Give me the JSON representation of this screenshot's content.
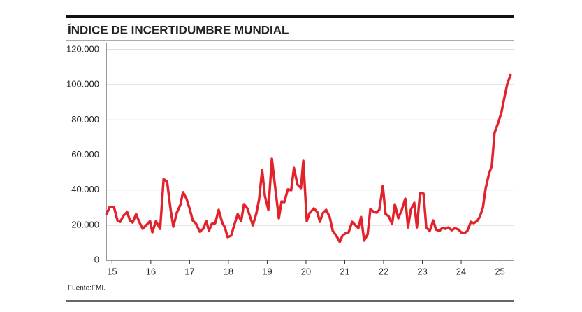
{
  "chart_data": {
    "type": "line",
    "title": "ÍNDICE DE INCERTIDUMBRE MUNDIAL",
    "source": "Fuente:FMI.",
    "x": [
      14.85,
      14.94,
      15.05,
      15.14,
      15.21,
      15.3,
      15.39,
      15.46,
      15.53,
      15.62,
      15.7,
      15.79,
      15.88,
      15.98,
      16.04,
      16.13,
      16.24,
      16.33,
      16.42,
      16.51,
      16.58,
      16.67,
      16.76,
      16.83,
      16.92,
      17.01,
      17.08,
      17.17,
      17.26,
      17.35,
      17.43,
      17.5,
      17.57,
      17.66,
      17.75,
      17.84,
      17.91,
      17.98,
      18.07,
      18.16,
      18.24,
      18.33,
      18.4,
      18.49,
      18.56,
      18.63,
      18.72,
      18.79,
      18.87,
      18.94,
      19.03,
      19.12,
      19.21,
      19.3,
      19.37,
      19.44,
      19.53,
      19.62,
      19.69,
      19.78,
      19.87,
      19.93,
      20.02,
      20.09,
      20.2,
      20.29,
      20.36,
      20.43,
      20.52,
      20.61,
      20.69,
      20.78,
      20.87,
      20.94,
      21.03,
      21.1,
      21.19,
      21.26,
      21.35,
      21.42,
      21.5,
      21.59,
      21.66,
      21.75,
      21.82,
      21.89,
      21.98,
      22.05,
      22.13,
      22.22,
      22.29,
      22.38,
      22.47,
      22.56,
      22.63,
      22.7,
      22.79,
      22.86,
      22.94,
      23.03,
      23.1,
      23.19,
      23.28,
      23.35,
      23.44,
      23.51,
      23.6,
      23.67,
      23.76,
      23.84,
      23.93,
      24.0,
      24.09,
      24.16,
      24.25,
      24.32,
      24.41,
      24.48,
      24.56,
      24.63,
      24.72,
      24.79,
      24.86,
      24.95,
      25.04,
      25.12,
      25.19,
      25.28
    ],
    "series": [
      {
        "color": "#e3232c",
        "values": [
          25900,
          30300,
          30300,
          22700,
          21900,
          25500,
          27500,
          22700,
          21500,
          26300,
          21900,
          17900,
          19900,
          22300,
          15900,
          22300,
          17900,
          46200,
          44700,
          28700,
          19100,
          27100,
          31500,
          38700,
          35100,
          28700,
          22700,
          20700,
          16300,
          17900,
          22300,
          16700,
          20700,
          21100,
          28700,
          21500,
          18700,
          13200,
          14000,
          20700,
          26300,
          22300,
          31900,
          29500,
          24700,
          19900,
          26700,
          34700,
          51400,
          36700,
          28700,
          57800,
          40700,
          23900,
          33500,
          33100,
          40300,
          39900,
          52600,
          43100,
          41100,
          56600,
          22300,
          26700,
          29500,
          27500,
          21900,
          26700,
          28700,
          24700,
          16700,
          14000,
          10400,
          14000,
          15500,
          15900,
          21900,
          20300,
          18300,
          24700,
          11200,
          14800,
          29100,
          27500,
          27100,
          28700,
          42300,
          26300,
          25100,
          20700,
          31900,
          23900,
          28700,
          35100,
          18700,
          28700,
          32700,
          18700,
          38300,
          37900,
          18700,
          16700,
          22700,
          17500,
          16700,
          18300,
          17900,
          18700,
          17100,
          18300,
          17500,
          15900,
          15500,
          16700,
          21900,
          21100,
          22300,
          24700,
          29900,
          40700,
          49400,
          53800,
          72600,
          78100,
          84500,
          93300,
          100500,
          106000
        ]
      }
    ],
    "xlim": [
      14.85,
      25.35
    ],
    "xticks": [
      15,
      16,
      17,
      18,
      19,
      20,
      21,
      22,
      23,
      24,
      25
    ],
    "ylim": [
      0,
      120000
    ],
    "yticks": [
      0,
      {
        "value": 20000,
        "label": "20.000"
      },
      {
        "value": 40000,
        "label": "40.000"
      },
      {
        "value": 60000,
        "label": "60.000"
      },
      {
        "value": 80000,
        "label": "80.000"
      },
      {
        "value": 100000,
        "label": "100.000"
      },
      {
        "value": 120000,
        "label": "120.000"
      }
    ],
    "grid": true
  }
}
